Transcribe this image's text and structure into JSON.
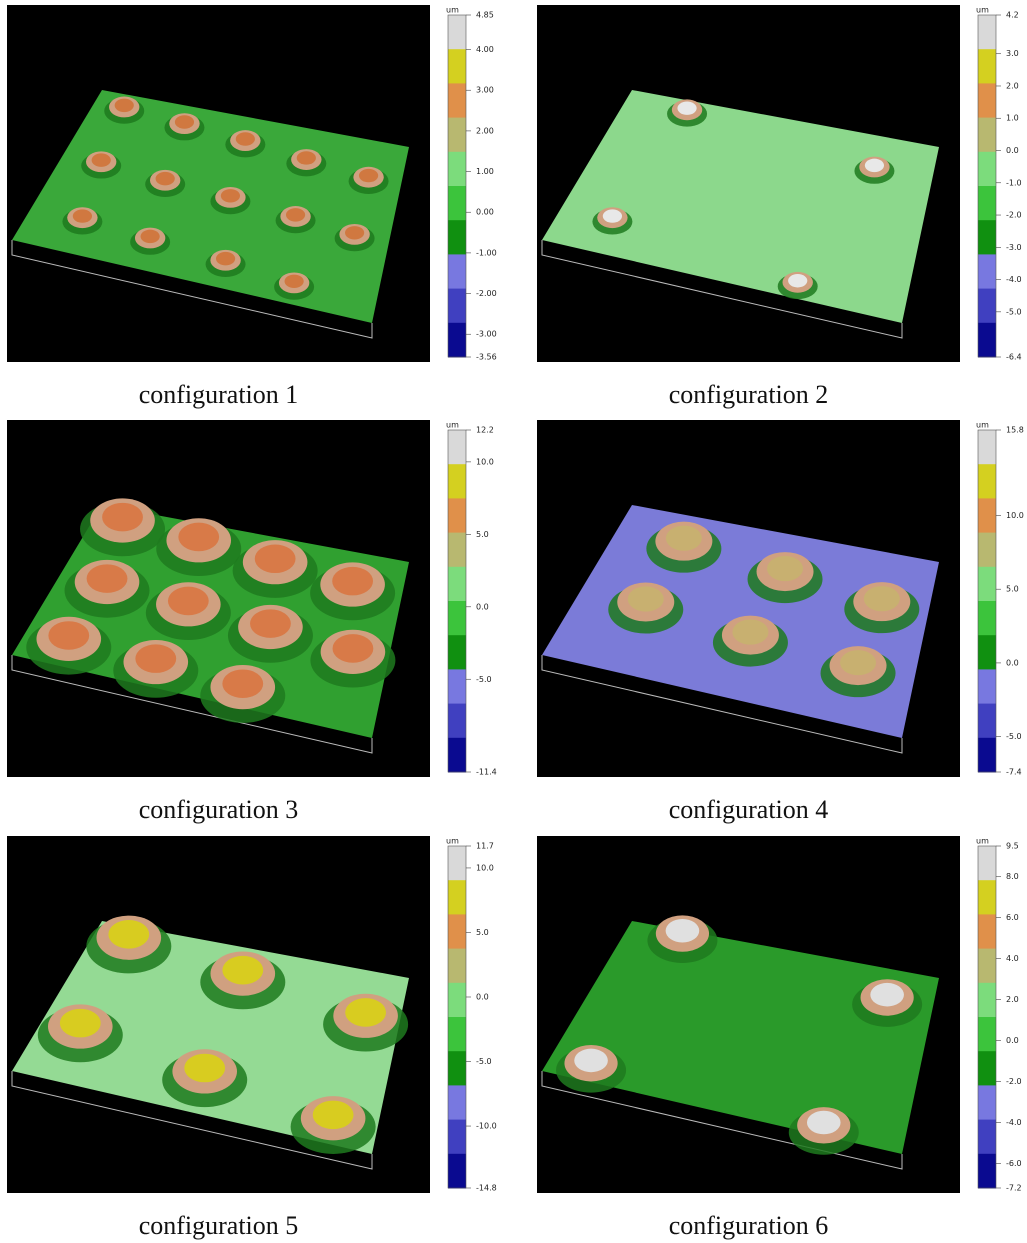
{
  "panels": [
    {
      "caption": "configuration 1",
      "colorbar": {
        "unit": "um",
        "ticks": [
          {
            "value": 4.85,
            "label": "4.85"
          },
          {
            "value": 4,
            "label": "4.00"
          },
          {
            "value": 3,
            "label": "3.00"
          },
          {
            "value": 2,
            "label": "2.00"
          },
          {
            "value": 1,
            "label": "1.00"
          },
          {
            "value": 0,
            "label": "0.00"
          },
          {
            "value": -1,
            "label": "-1.00"
          },
          {
            "value": -2,
            "label": "-2.00"
          },
          {
            "value": -3,
            "label": "-3.00"
          },
          {
            "value": -3.56,
            "label": "-3.56"
          }
        ]
      }
    },
    {
      "caption": "configuration 2",
      "colorbar": {
        "unit": "um",
        "ticks": [
          4.2,
          {
            "value": 3,
            "label": "3.0"
          },
          {
            "value": 2,
            "label": "2.0"
          },
          {
            "value": 1,
            "label": "1.0"
          },
          {
            "value": 0,
            "label": "0.0"
          },
          {
            "value": -1,
            "label": "-1.0"
          },
          {
            "value": -2,
            "label": "-2.0"
          },
          {
            "value": -3,
            "label": "-3.0"
          },
          {
            "value": -4,
            "label": "-4.0"
          },
          {
            "value": -5,
            "label": "-5.0"
          },
          -6.4
        ]
      }
    },
    {
      "caption": "configuration 3",
      "colorbar": {
        "unit": "um",
        "ticks": [
          12.2,
          {
            "value": 10,
            "label": "10.0"
          },
          {
            "value": 5,
            "label": "5.0"
          },
          {
            "value": 0,
            "label": "0.0"
          },
          {
            "value": -5,
            "label": "-5.0"
          },
          -11.4
        ]
      }
    },
    {
      "caption": "configuration 4",
      "colorbar": {
        "unit": "um",
        "ticks": [
          15.8,
          {
            "value": 10,
            "label": "10.0"
          },
          {
            "value": 5,
            "label": "5.0"
          },
          {
            "value": 0,
            "label": "0.0"
          },
          {
            "value": -5,
            "label": "-5.0"
          },
          -7.4
        ]
      }
    },
    {
      "caption": "configuration 5",
      "colorbar": {
        "unit": "um",
        "ticks": [
          11.7,
          {
            "value": 10,
            "label": "10.0"
          },
          {
            "value": 5,
            "label": "5.0"
          },
          {
            "value": 0,
            "label": "0.0"
          },
          {
            "value": -5,
            "label": "-5.0"
          },
          {
            "value": -10,
            "label": "-10.0"
          },
          -14.8
        ]
      }
    },
    {
      "caption": "configuration 6",
      "colorbar": {
        "unit": "um",
        "ticks": [
          9.5,
          {
            "value": 8,
            "label": "8.0"
          },
          {
            "value": 6,
            "label": "6.0"
          },
          {
            "value": 4,
            "label": "4.0"
          },
          {
            "value": 2,
            "label": "2.0"
          },
          {
            "value": 0,
            "label": "0.0"
          },
          {
            "value": -2,
            "label": "-2.0"
          },
          {
            "value": -4,
            "label": "-4.0"
          },
          {
            "value": -6,
            "label": "-6.0"
          },
          -7.2
        ]
      }
    }
  ]
}
